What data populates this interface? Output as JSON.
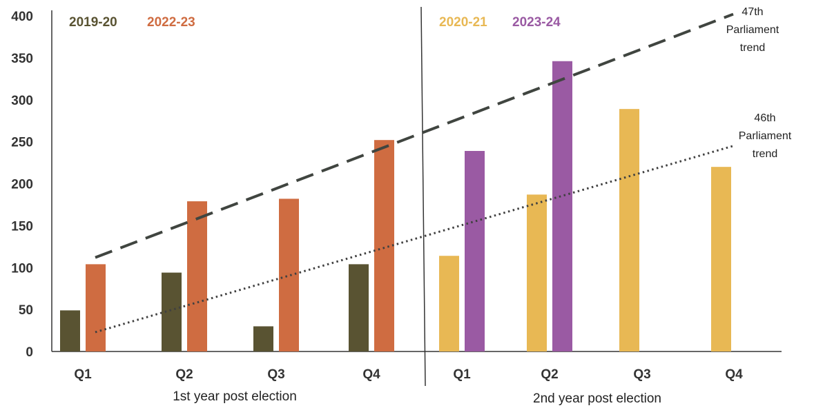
{
  "chart_data": {
    "type": "bar",
    "ylim": [
      0,
      400
    ],
    "yticks": [
      0,
      50,
      100,
      150,
      200,
      250,
      300,
      350,
      400
    ],
    "grid": false,
    "panels": [
      {
        "group_label": "1st year post election",
        "categories": [
          "Q1",
          "Q2",
          "Q3",
          "Q4"
        ],
        "series": [
          {
            "name": "2019-20",
            "color": "#595332",
            "values": [
              49,
              94,
              30,
              104
            ]
          },
          {
            "name": "2022-23",
            "color": "#CF6C41",
            "values": [
              104,
              179,
              182,
              252
            ]
          }
        ]
      },
      {
        "group_label": "2nd year post election",
        "categories": [
          "Q1",
          "Q2",
          "Q3",
          "Q4"
        ],
        "series": [
          {
            "name": "2020-21",
            "color": "#E8B854",
            "values": [
              114,
              187,
              289,
              220
            ]
          },
          {
            "name": "2023-24",
            "color": "#9A5AA3",
            "values": [
              239,
              346,
              null,
              null
            ]
          }
        ]
      }
    ],
    "trendlines": [
      {
        "label": [
          "47th",
          "Parliament",
          "trend"
        ],
        "style": "dashed",
        "color": "#404540",
        "y_start": 112,
        "y_end": 402
      },
      {
        "label": [
          "46th",
          "Parliament",
          "trend"
        ],
        "style": "dotted",
        "color": "#404040",
        "y_start": 23,
        "y_end": 245
      }
    ]
  }
}
